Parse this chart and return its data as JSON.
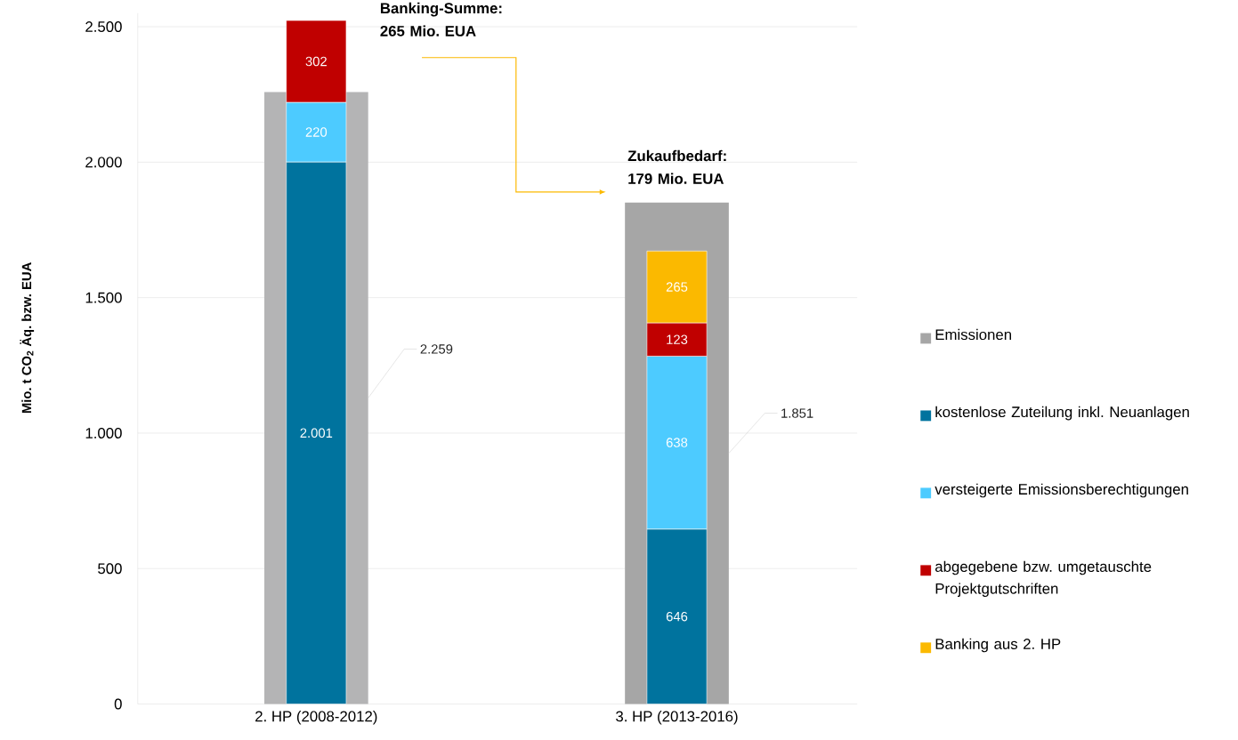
{
  "chart_data": {
    "type": "bar",
    "ylabel": "Mio. t CO$_{2}$ Äq. bzw. EUA",
    "categories": [
      "2. HP (2008-2012)",
      "3. HP (2013-2016)"
    ],
    "series": [
      {
        "name": "Emissionen",
        "color": "#a6a6a6",
        "colors": [
          "#b4b4b5",
          "#a6a6a6"
        ],
        "values": [
          2259,
          1851
        ],
        "value_labels": [
          "2.259",
          "1.851"
        ]
      },
      {
        "name": "kostenlose Zuteilung inkl. Neuanlagen",
        "color": "#00739e",
        "base": [
          0,
          0
        ],
        "values": [
          2001,
          646
        ],
        "value_labels": [
          "2.001",
          "646"
        ]
      },
      {
        "name": "versteigerte Emissionsberechtigungen",
        "color": "#4dcbff",
        "base": [
          2001,
          646
        ],
        "values": [
          220,
          638
        ],
        "value_labels": [
          "220",
          "638"
        ]
      },
      {
        "name": "abgegebene bzw. umgetauschte Projektgutschriften",
        "color": "#c00000",
        "base": [
          2221,
          1284
        ],
        "values": [
          302,
          123
        ],
        "value_labels": [
          "302",
          "123"
        ]
      },
      {
        "name": "Banking aus 2. HP",
        "color": "#fbb900",
        "base": [
          null,
          1407
        ],
        "values": [
          null,
          265
        ],
        "value_labels": [
          null,
          "265"
        ]
      }
    ],
    "ylim": [
      0,
      2550
    ],
    "yticks": [
      {
        "value": 0,
        "label": "0"
      },
      {
        "value": 500,
        "label": "500"
      },
      {
        "value": 1000,
        "label": "1.000"
      },
      {
        "value": 1500,
        "label": "1.500"
      },
      {
        "value": 2000,
        "label": "2.000"
      },
      {
        "value": 2500,
        "label": "2.500"
      }
    ],
    "grid": "y",
    "legend": "right",
    "annotations": [
      {
        "text": "Banking-Summe: 265 Mio. EUA"
      },
      {
        "text": "Zukaufbedarf: 179 Mio. EUA"
      }
    ]
  }
}
